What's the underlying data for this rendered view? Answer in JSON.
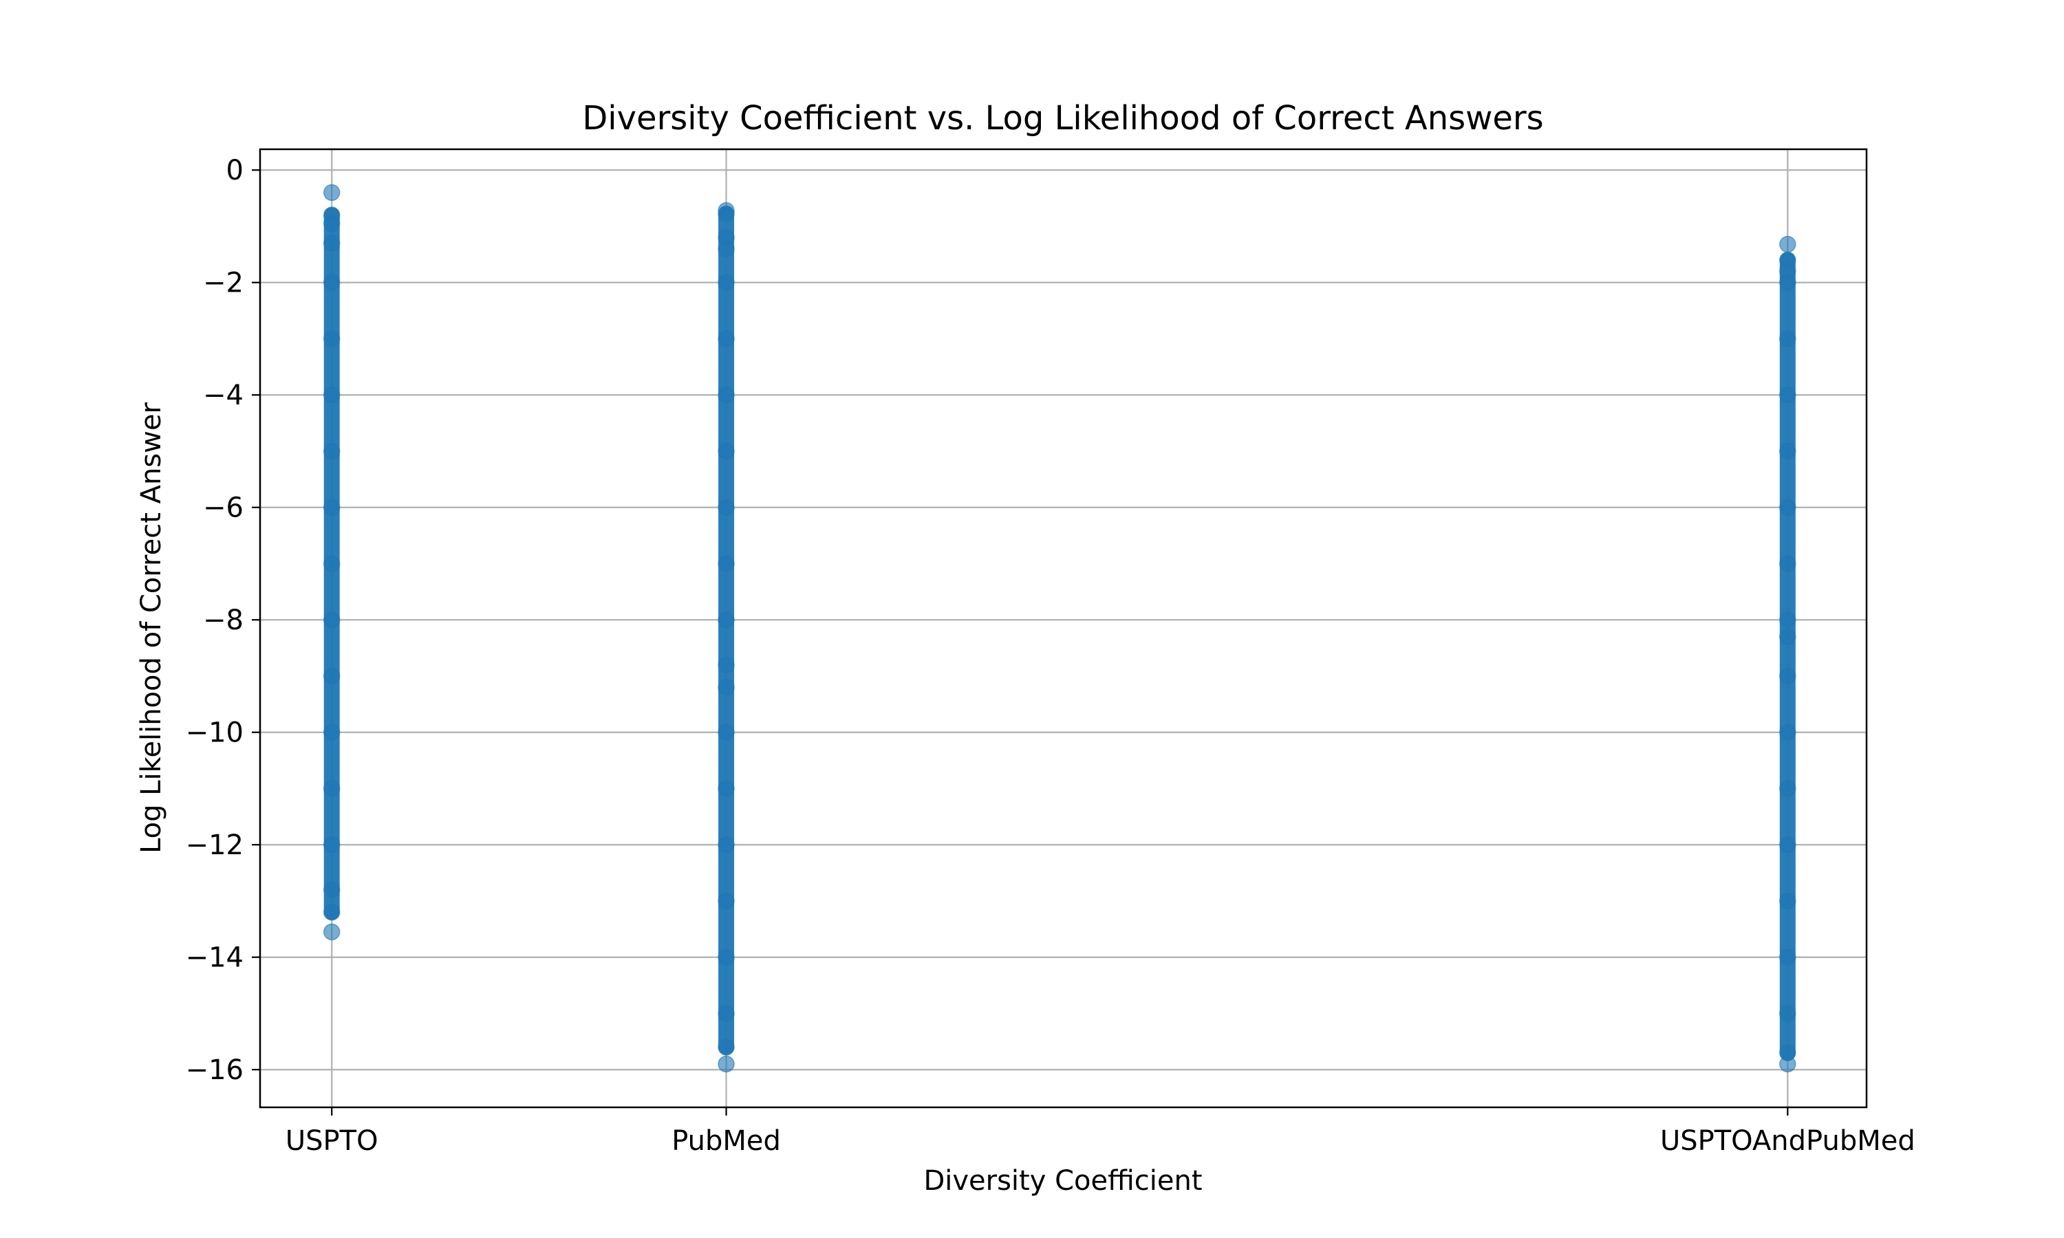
{
  "chart_data": {
    "type": "scatter",
    "title": "Diversity Coefficient vs. Log Likelihood of Correct Answers",
    "xlabel": "Diversity Coefficient",
    "ylabel": "Log Likelihood of Correct Answer",
    "categories": [
      "USPTO",
      "PubMed",
      "USPTOAndPubMed"
    ],
    "x_values": [
      0.5135,
      0.519,
      0.5338
    ],
    "xlim": [
      0.5125,
      0.5349
    ],
    "ylim": [
      -16.67,
      0.37
    ],
    "yticks": [
      0,
      -2,
      -4,
      -6,
      -8,
      -10,
      -12,
      -14,
      -16
    ],
    "ytick_labels": [
      "0",
      "−2",
      "−4",
      "−6",
      "−8",
      "−10",
      "−12",
      "−14",
      "−16"
    ],
    "grid": true,
    "series": [
      {
        "category": "USPTO",
        "color": "#1f77b4",
        "points": [
          -0.4,
          -0.8,
          -0.95,
          -1.3,
          -2.0,
          -3.0,
          -4.0,
          -5.0,
          -6.0,
          -7.0,
          -8.0,
          -9.0,
          -10.0,
          -11.0,
          -12.0,
          -12.8,
          -13.2,
          -13.55
        ]
      },
      {
        "category": "PubMed",
        "color": "#1f77b4",
        "points": [
          -0.72,
          -0.78,
          -1.2,
          -1.4,
          -2.0,
          -3.0,
          -4.0,
          -5.0,
          -6.0,
          -7.0,
          -8.0,
          -8.8,
          -9.2,
          -10.0,
          -11.0,
          -12.0,
          -13.0,
          -14.0,
          -15.0,
          -15.6,
          -15.9
        ]
      },
      {
        "category": "USPTOAndPubMed",
        "color": "#1f77b4",
        "points": [
          -1.32,
          -1.6,
          -1.8,
          -2.0,
          -3.0,
          -4.0,
          -5.0,
          -6.0,
          -7.0,
          -8.0,
          -8.3,
          -9.0,
          -10.0,
          -11.0,
          -12.0,
          -13.0,
          -14.0,
          -15.0,
          -15.7,
          -15.9
        ]
      }
    ]
  }
}
